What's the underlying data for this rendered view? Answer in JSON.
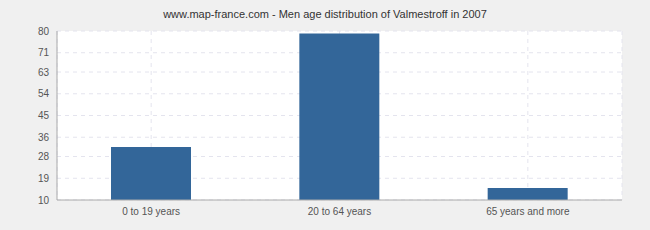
{
  "chart_data": {
    "type": "bar",
    "title": "www.map-france.com - Men age distribution of Valmestroff in 2007",
    "categories": [
      "0 to 19 years",
      "20 to 64 years",
      "65 years and more"
    ],
    "values": [
      32,
      79,
      15
    ],
    "color": "#336699",
    "ylim": [
      10,
      80
    ],
    "yticks": [
      10,
      19,
      28,
      36,
      45,
      54,
      63,
      71,
      80
    ],
    "grid": true
  }
}
